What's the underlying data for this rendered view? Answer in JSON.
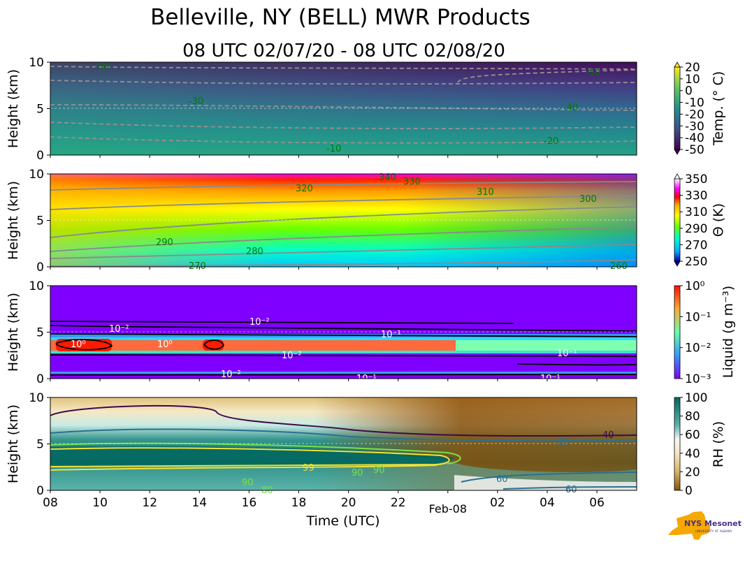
{
  "title": "Belleville, NY (BELL) MWR Products",
  "subtitle": "08 UTC 02/07/20 - 08 UTC 02/08/20",
  "xlabel": "Time (UTC)",
  "logo": {
    "text": "NYS Mesonet",
    "subtext": "UNIVERSITY AT ALBANY",
    "color": "#f5a800",
    "text_color": "#4b2e83"
  },
  "chart_data": [
    {
      "type": "heatmap",
      "name": "temperature",
      "ylabel": "Height (km)",
      "colorbar_label": "Temp. (° C)",
      "colorbar_ticks": [
        "20",
        "10",
        "0",
        "-10",
        "-20",
        "-30",
        "-40",
        "-50"
      ],
      "ylim": [
        0,
        10
      ],
      "yticks": [
        "0",
        "5",
        "10"
      ],
      "contour_labels": [
        "-50",
        "-30",
        "-10",
        "-50",
        "-40",
        "-20"
      ],
      "colors": [
        "#fde725",
        "#5ec962",
        "#21918c",
        "#3b528b",
        "#440154"
      ]
    },
    {
      "type": "heatmap",
      "name": "theta",
      "ylabel": "Height (km)",
      "colorbar_label": "Θ (K)",
      "colorbar_ticks": [
        "350",
        "330",
        "310",
        "290",
        "270",
        "250"
      ],
      "ylim": [
        0,
        10
      ],
      "yticks": [
        "0",
        "5",
        "10"
      ],
      "contour_labels": [
        "320",
        "330",
        "340",
        "310",
        "300",
        "290",
        "280",
        "270",
        "260"
      ],
      "colors": [
        "#ff00ff",
        "#ff0000",
        "#ffaa00",
        "#ffff00",
        "#66ff00",
        "#00ffcc",
        "#00aaff",
        "#0000cc"
      ]
    },
    {
      "type": "heatmap",
      "name": "liquid",
      "ylabel": "Height (km)",
      "colorbar_label": "Liquid (g m⁻³)",
      "colorbar_ticks": [
        "10⁰",
        "10⁻¹",
        "10⁻²",
        "10⁻³"
      ],
      "ylim": [
        0,
        10
      ],
      "yticks": [
        "0",
        "5",
        "10"
      ],
      "contour_labels": [
        "10⁻²",
        "10⁻²",
        "10⁰",
        "10⁰",
        "10⁻¹",
        "10⁻²",
        "10⁻¹",
        "10⁻²",
        "10⁻¹",
        "10⁻¹"
      ],
      "colors": [
        "#ff2200",
        "#ff9933",
        "#66ffaa",
        "#3399ff",
        "#8000ff"
      ]
    },
    {
      "type": "heatmap",
      "name": "rh",
      "ylabel": "Height (km)",
      "colorbar_label": "RH (%)",
      "colorbar_ticks": [
        "100",
        "80",
        "60",
        "40",
        "20",
        "0"
      ],
      "ylim": [
        0,
        10
      ],
      "yticks": [
        "0",
        "5",
        "10"
      ],
      "contour_labels": [
        "40",
        "60",
        "99",
        "90",
        "90",
        "60",
        "60",
        "90",
        "80"
      ],
      "colors": [
        "#01665e",
        "#5ab4ac",
        "#f5f5f5",
        "#d8b365",
        "#8c510a"
      ]
    }
  ],
  "xticks": [
    "08",
    "10",
    "12",
    "14",
    "16",
    "18",
    "20",
    "22",
    "Feb-08",
    "02",
    "04",
    "06"
  ]
}
